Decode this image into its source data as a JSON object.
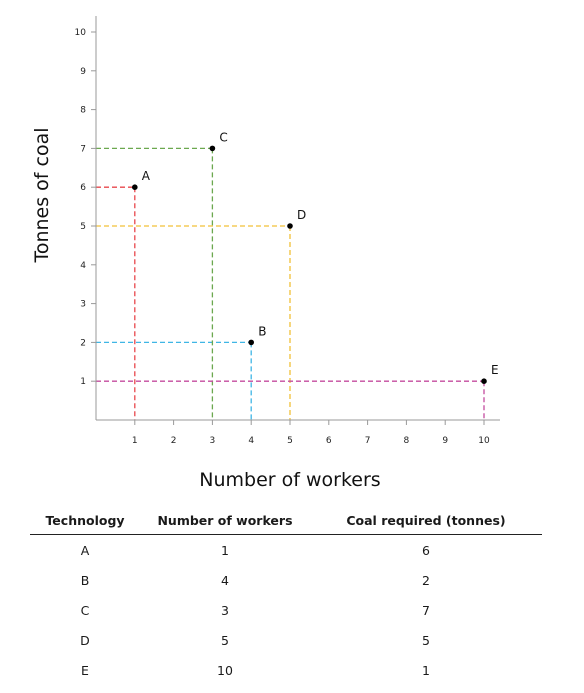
{
  "chart_data": {
    "type": "scatter",
    "xlabel": "Number of workers",
    "ylabel": "Tonnes of coal",
    "xlim": [
      0,
      10.5
    ],
    "ylim": [
      0,
      10.5
    ],
    "xticks": [
      1,
      2,
      3,
      4,
      5,
      6,
      7,
      8,
      9,
      10
    ],
    "yticks": [
      1,
      2,
      3,
      4,
      5,
      6,
      7,
      8,
      9,
      10
    ],
    "grid": false,
    "guide_lines": "dashed to both axes",
    "points": [
      {
        "label": "A",
        "x": 1,
        "y": 6,
        "color": "#e8474c"
      },
      {
        "label": "B",
        "x": 4,
        "y": 2,
        "color": "#3fb6e5"
      },
      {
        "label": "C",
        "x": 3,
        "y": 7,
        "color": "#6ba84f"
      },
      {
        "label": "D",
        "x": 5,
        "y": 5,
        "color": "#f2c037"
      },
      {
        "label": "E",
        "x": 10,
        "y": 1,
        "color": "#c44b9e"
      }
    ]
  },
  "table": {
    "headers": [
      "Technology",
      "Number of workers",
      "Coal required (tonnes)"
    ],
    "rows": [
      [
        "A",
        "1",
        "6"
      ],
      [
        "B",
        "4",
        "2"
      ],
      [
        "C",
        "3",
        "7"
      ],
      [
        "D",
        "5",
        "5"
      ],
      [
        "E",
        "10",
        "1"
      ]
    ]
  }
}
